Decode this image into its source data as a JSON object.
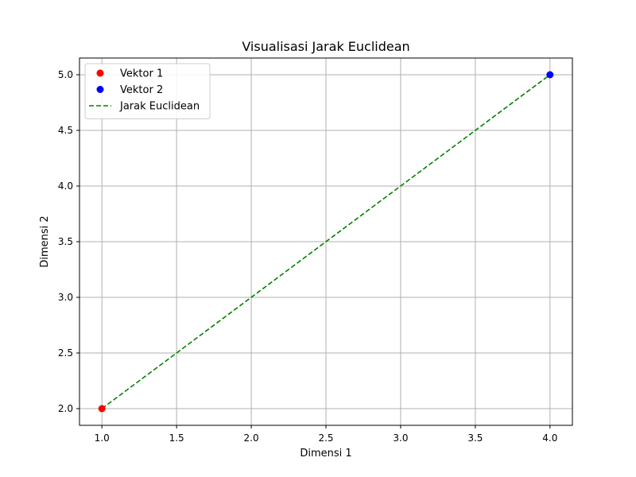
{
  "chart_data": {
    "type": "scatter",
    "title": "Visualisasi Jarak Euclidean",
    "xlabel": "Dimensi 1",
    "ylabel": "Dimensi 2",
    "xlim": [
      0.85,
      4.15
    ],
    "ylim": [
      1.85,
      5.15
    ],
    "xticks": [
      1.0,
      1.5,
      2.0,
      2.5,
      3.0,
      3.5,
      4.0
    ],
    "yticks": [
      2.0,
      2.5,
      3.0,
      3.5,
      4.0,
      4.5,
      5.0
    ],
    "xtick_labels": [
      "1.0",
      "1.5",
      "2.0",
      "2.5",
      "3.0",
      "3.5",
      "4.0"
    ],
    "ytick_labels": [
      "2.0",
      "2.5",
      "3.0",
      "3.5",
      "4.0",
      "4.5",
      "5.0"
    ],
    "grid": true,
    "legend_position": "top-left",
    "series": [
      {
        "name": "Vektor 1",
        "kind": "point",
        "color": "#ff0000",
        "x": [
          1
        ],
        "y": [
          2
        ]
      },
      {
        "name": "Vektor 2",
        "kind": "point",
        "color": "#0000ff",
        "x": [
          4
        ],
        "y": [
          5
        ]
      },
      {
        "name": "Jarak Euclidean",
        "kind": "dashed-line",
        "color": "#008000",
        "x": [
          1,
          4
        ],
        "y": [
          2,
          5
        ]
      }
    ]
  }
}
